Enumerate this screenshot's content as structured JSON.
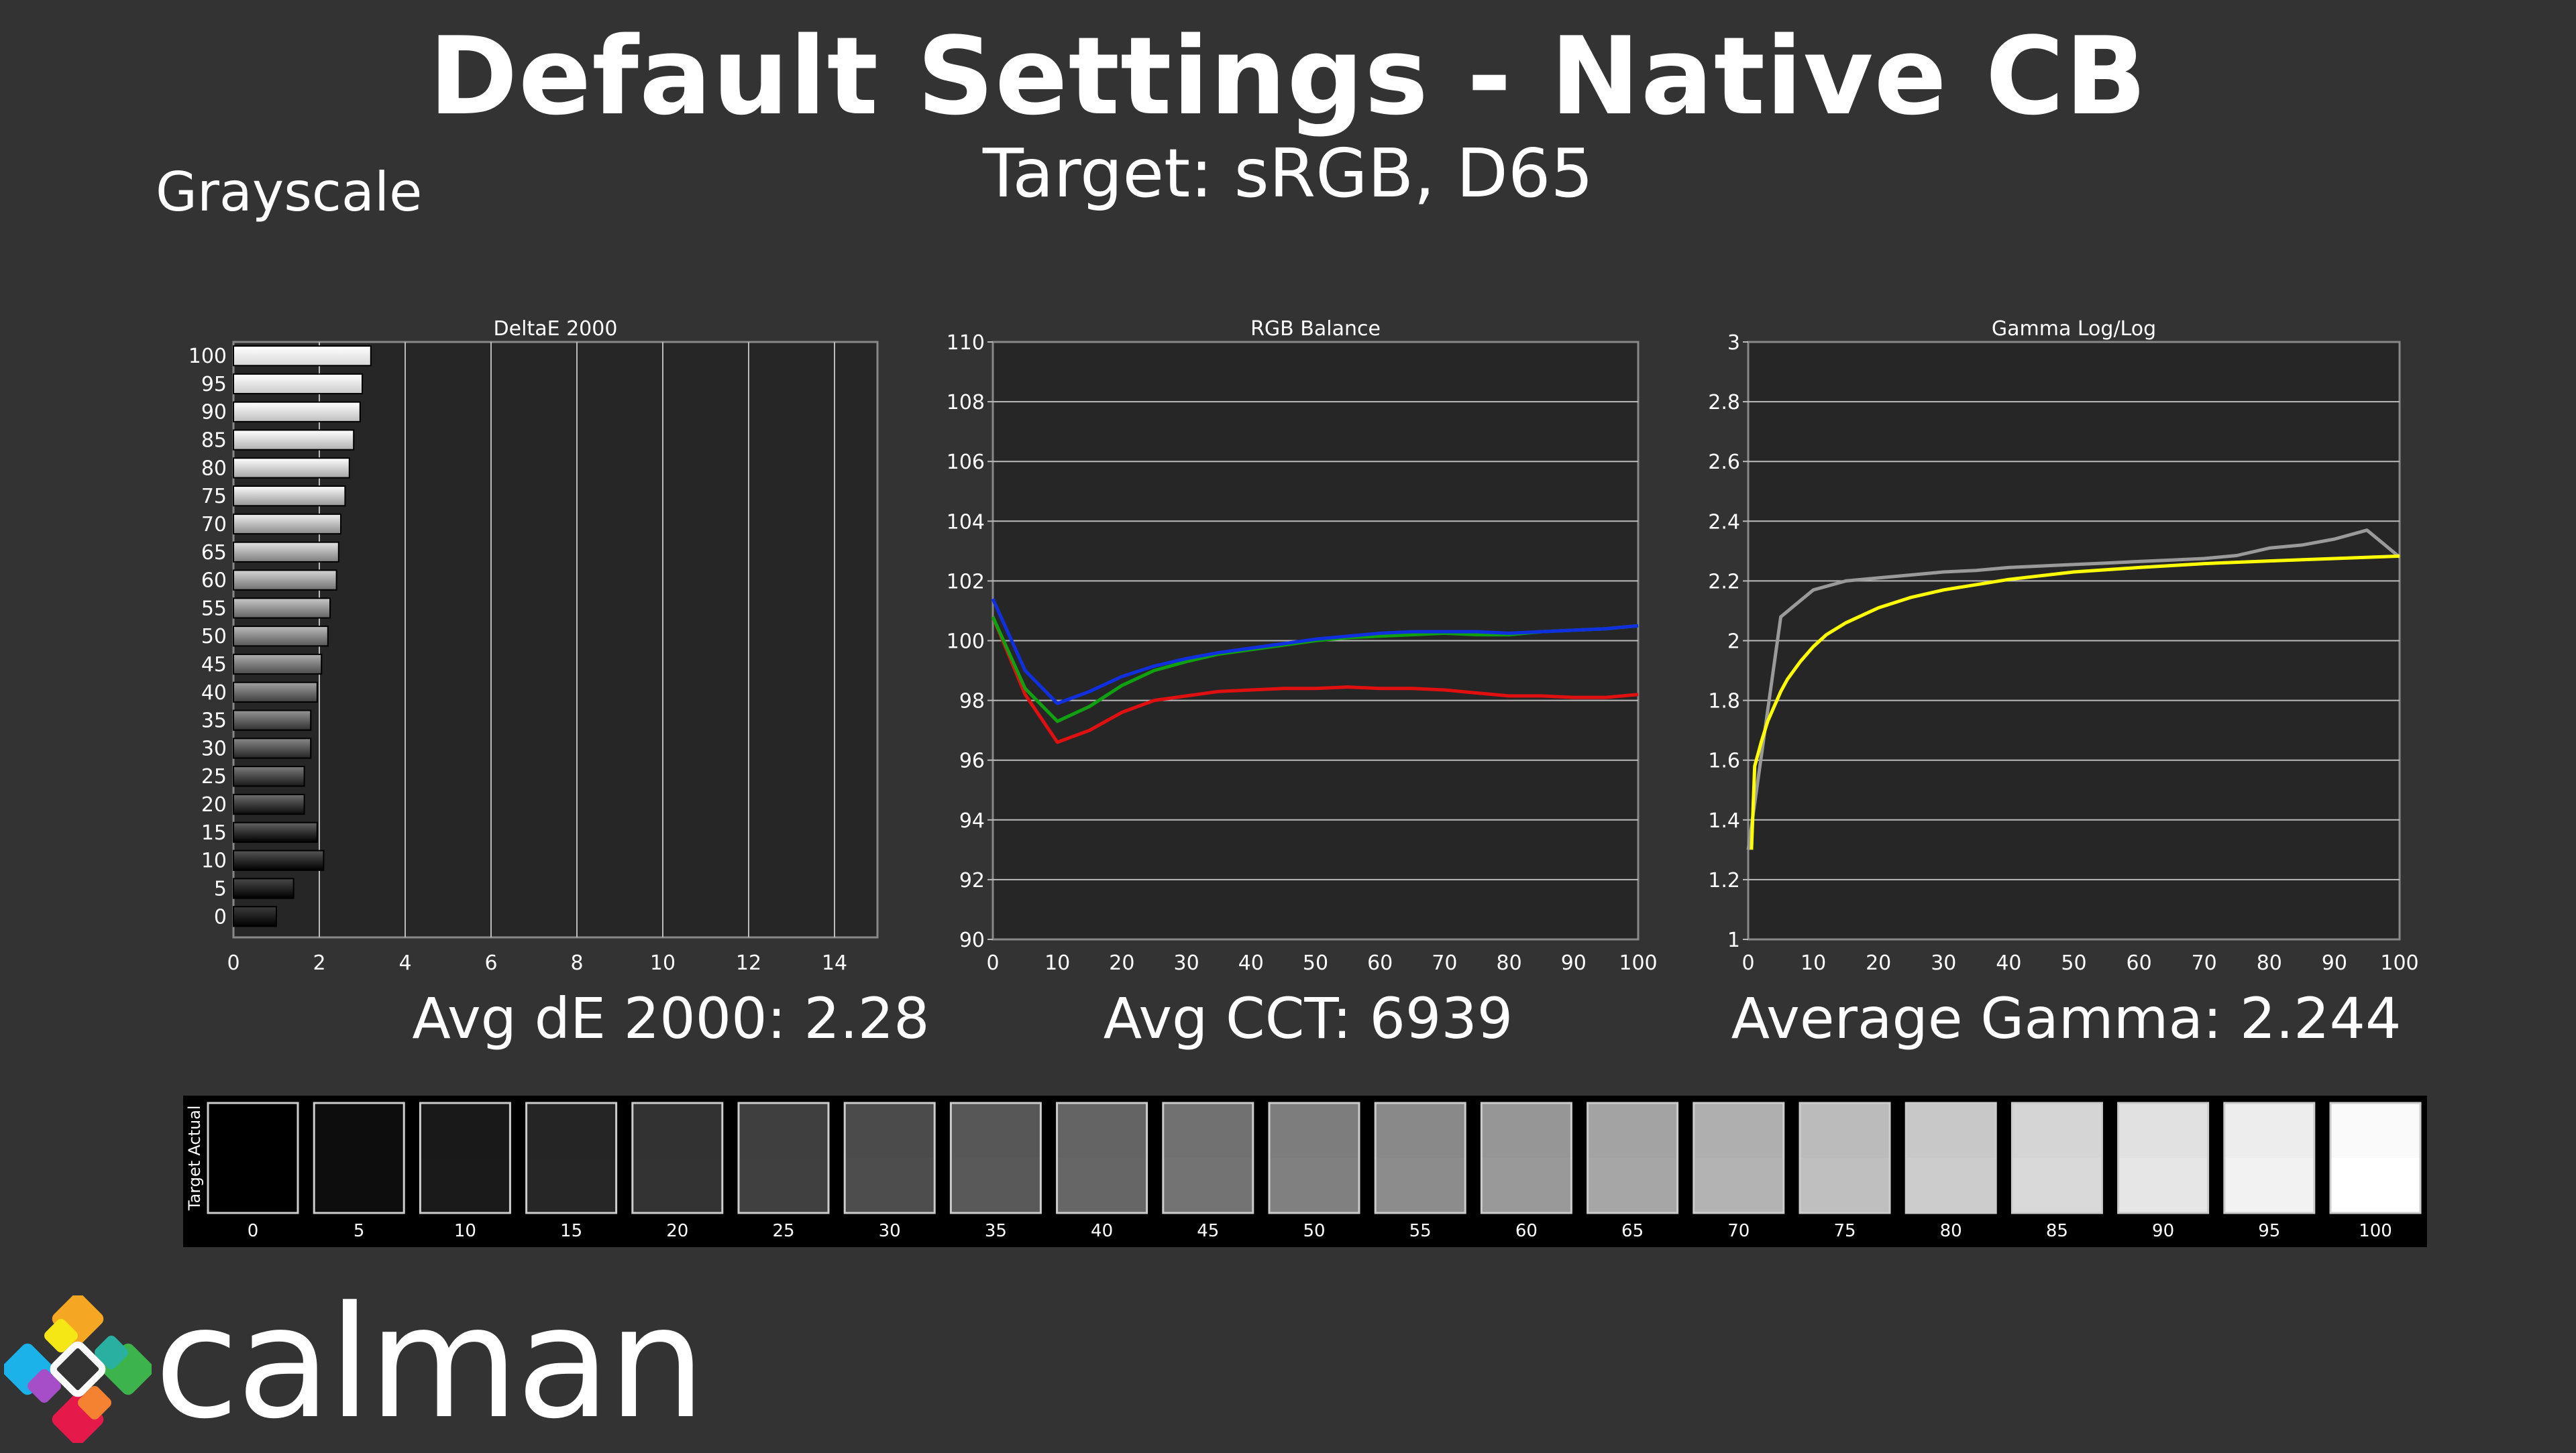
{
  "header": {
    "title": "Default Settings - Native CB",
    "subtitle": "Target: sRGB, D65",
    "section": "Grayscale"
  },
  "stats": {
    "delta_e": "Avg dE 2000: 2.28",
    "cct": "Avg CCT: 6939",
    "gamma": "Average Gamma: 2.244"
  },
  "swatches": {
    "labels": [
      "0",
      "5",
      "10",
      "15",
      "20",
      "25",
      "30",
      "35",
      "40",
      "45",
      "50",
      "55",
      "60",
      "65",
      "70",
      "75",
      "80",
      "85",
      "90",
      "95",
      "100"
    ],
    "actual_label": "Actual",
    "target_label": "Target"
  },
  "brand": {
    "name": "calman"
  },
  "chart_data": [
    {
      "type": "bar",
      "title": "DeltaE 2000",
      "orientation": "horizontal",
      "categories": [
        "100",
        "95",
        "90",
        "85",
        "80",
        "75",
        "70",
        "65",
        "60",
        "55",
        "50",
        "45",
        "40",
        "35",
        "30",
        "25",
        "20",
        "15",
        "10",
        "5",
        "0"
      ],
      "values": [
        3.2,
        3.0,
        2.95,
        2.8,
        2.7,
        2.6,
        2.5,
        2.45,
        2.4,
        2.25,
        2.2,
        2.05,
        1.95,
        1.8,
        1.8,
        1.65,
        1.65,
        1.95,
        2.1,
        1.4,
        1.0
      ],
      "xticks": [
        "0",
        "2",
        "4",
        "6",
        "8",
        "10",
        "12",
        "14"
      ],
      "xlim": [
        0,
        15
      ]
    },
    {
      "type": "line",
      "title": "RGB Balance",
      "x": [
        0,
        5,
        10,
        15,
        20,
        25,
        30,
        35,
        40,
        45,
        50,
        55,
        60,
        65,
        70,
        75,
        80,
        85,
        90,
        95,
        100
      ],
      "series": [
        {
          "color": "#e01010",
          "values": [
            100.8,
            98.2,
            96.6,
            97.0,
            97.6,
            98.0,
            98.15,
            98.3,
            98.35,
            98.4,
            98.4,
            98.45,
            98.4,
            98.4,
            98.35,
            98.25,
            98.15,
            98.15,
            98.1,
            98.1,
            98.2
          ]
        },
        {
          "color": "#10a010",
          "values": [
            100.8,
            98.4,
            97.3,
            97.8,
            98.5,
            99.0,
            99.3,
            99.55,
            99.7,
            99.85,
            100.0,
            100.1,
            100.15,
            100.2,
            100.25,
            100.2,
            100.2,
            100.3,
            100.35,
            100.4,
            100.5
          ]
        },
        {
          "color": "#1030e0",
          "values": [
            101.4,
            99.0,
            97.9,
            98.3,
            98.8,
            99.15,
            99.4,
            99.6,
            99.75,
            99.9,
            100.05,
            100.15,
            100.25,
            100.3,
            100.3,
            100.3,
            100.25,
            100.3,
            100.35,
            100.4,
            100.5
          ]
        }
      ],
      "yticks": [
        "90",
        "92",
        "94",
        "96",
        "98",
        "100",
        "102",
        "104",
        "106",
        "108",
        "110"
      ],
      "xticks": [
        "0",
        "10",
        "20",
        "30",
        "40",
        "50",
        "60",
        "70",
        "80",
        "90",
        "100"
      ],
      "ylim": [
        90,
        110
      ],
      "xlim": [
        0,
        100
      ]
    },
    {
      "type": "line",
      "title": "Gamma Log/Log",
      "x_measured": [
        0,
        5,
        10,
        15,
        20,
        25,
        30,
        35,
        40,
        45,
        50,
        55,
        60,
        65,
        70,
        75,
        80,
        85,
        90,
        95,
        100
      ],
      "series": [
        {
          "color": "#9a9a9a",
          "values": [
            1.3,
            2.08,
            2.17,
            2.2,
            2.21,
            2.22,
            2.23,
            2.235,
            2.245,
            2.25,
            2.255,
            2.26,
            2.265,
            2.27,
            2.275,
            2.285,
            2.31,
            2.32,
            2.34,
            2.37,
            2.28
          ]
        },
        {
          "color": "#ffff00",
          "x": [
            0.5,
            1,
            2,
            3,
            4,
            5,
            6,
            8,
            10,
            12,
            15,
            20,
            25,
            30,
            40,
            50,
            60,
            70,
            80,
            90,
            100
          ],
          "values": [
            1.3,
            1.58,
            1.66,
            1.73,
            1.78,
            1.83,
            1.87,
            1.93,
            1.98,
            2.02,
            2.06,
            2.11,
            2.145,
            2.17,
            2.205,
            2.23,
            2.245,
            2.258,
            2.267,
            2.275,
            2.283
          ]
        }
      ],
      "yticks": [
        "1",
        "1.2",
        "1.4",
        "1.6",
        "1.8",
        "2",
        "2.2",
        "2.4",
        "2.6",
        "2.8",
        "3"
      ],
      "xticks": [
        "0",
        "10",
        "20",
        "30",
        "40",
        "50",
        "60",
        "70",
        "80",
        "90",
        "100"
      ],
      "ylim": [
        1,
        3
      ],
      "xlim": [
        0,
        100
      ]
    }
  ]
}
